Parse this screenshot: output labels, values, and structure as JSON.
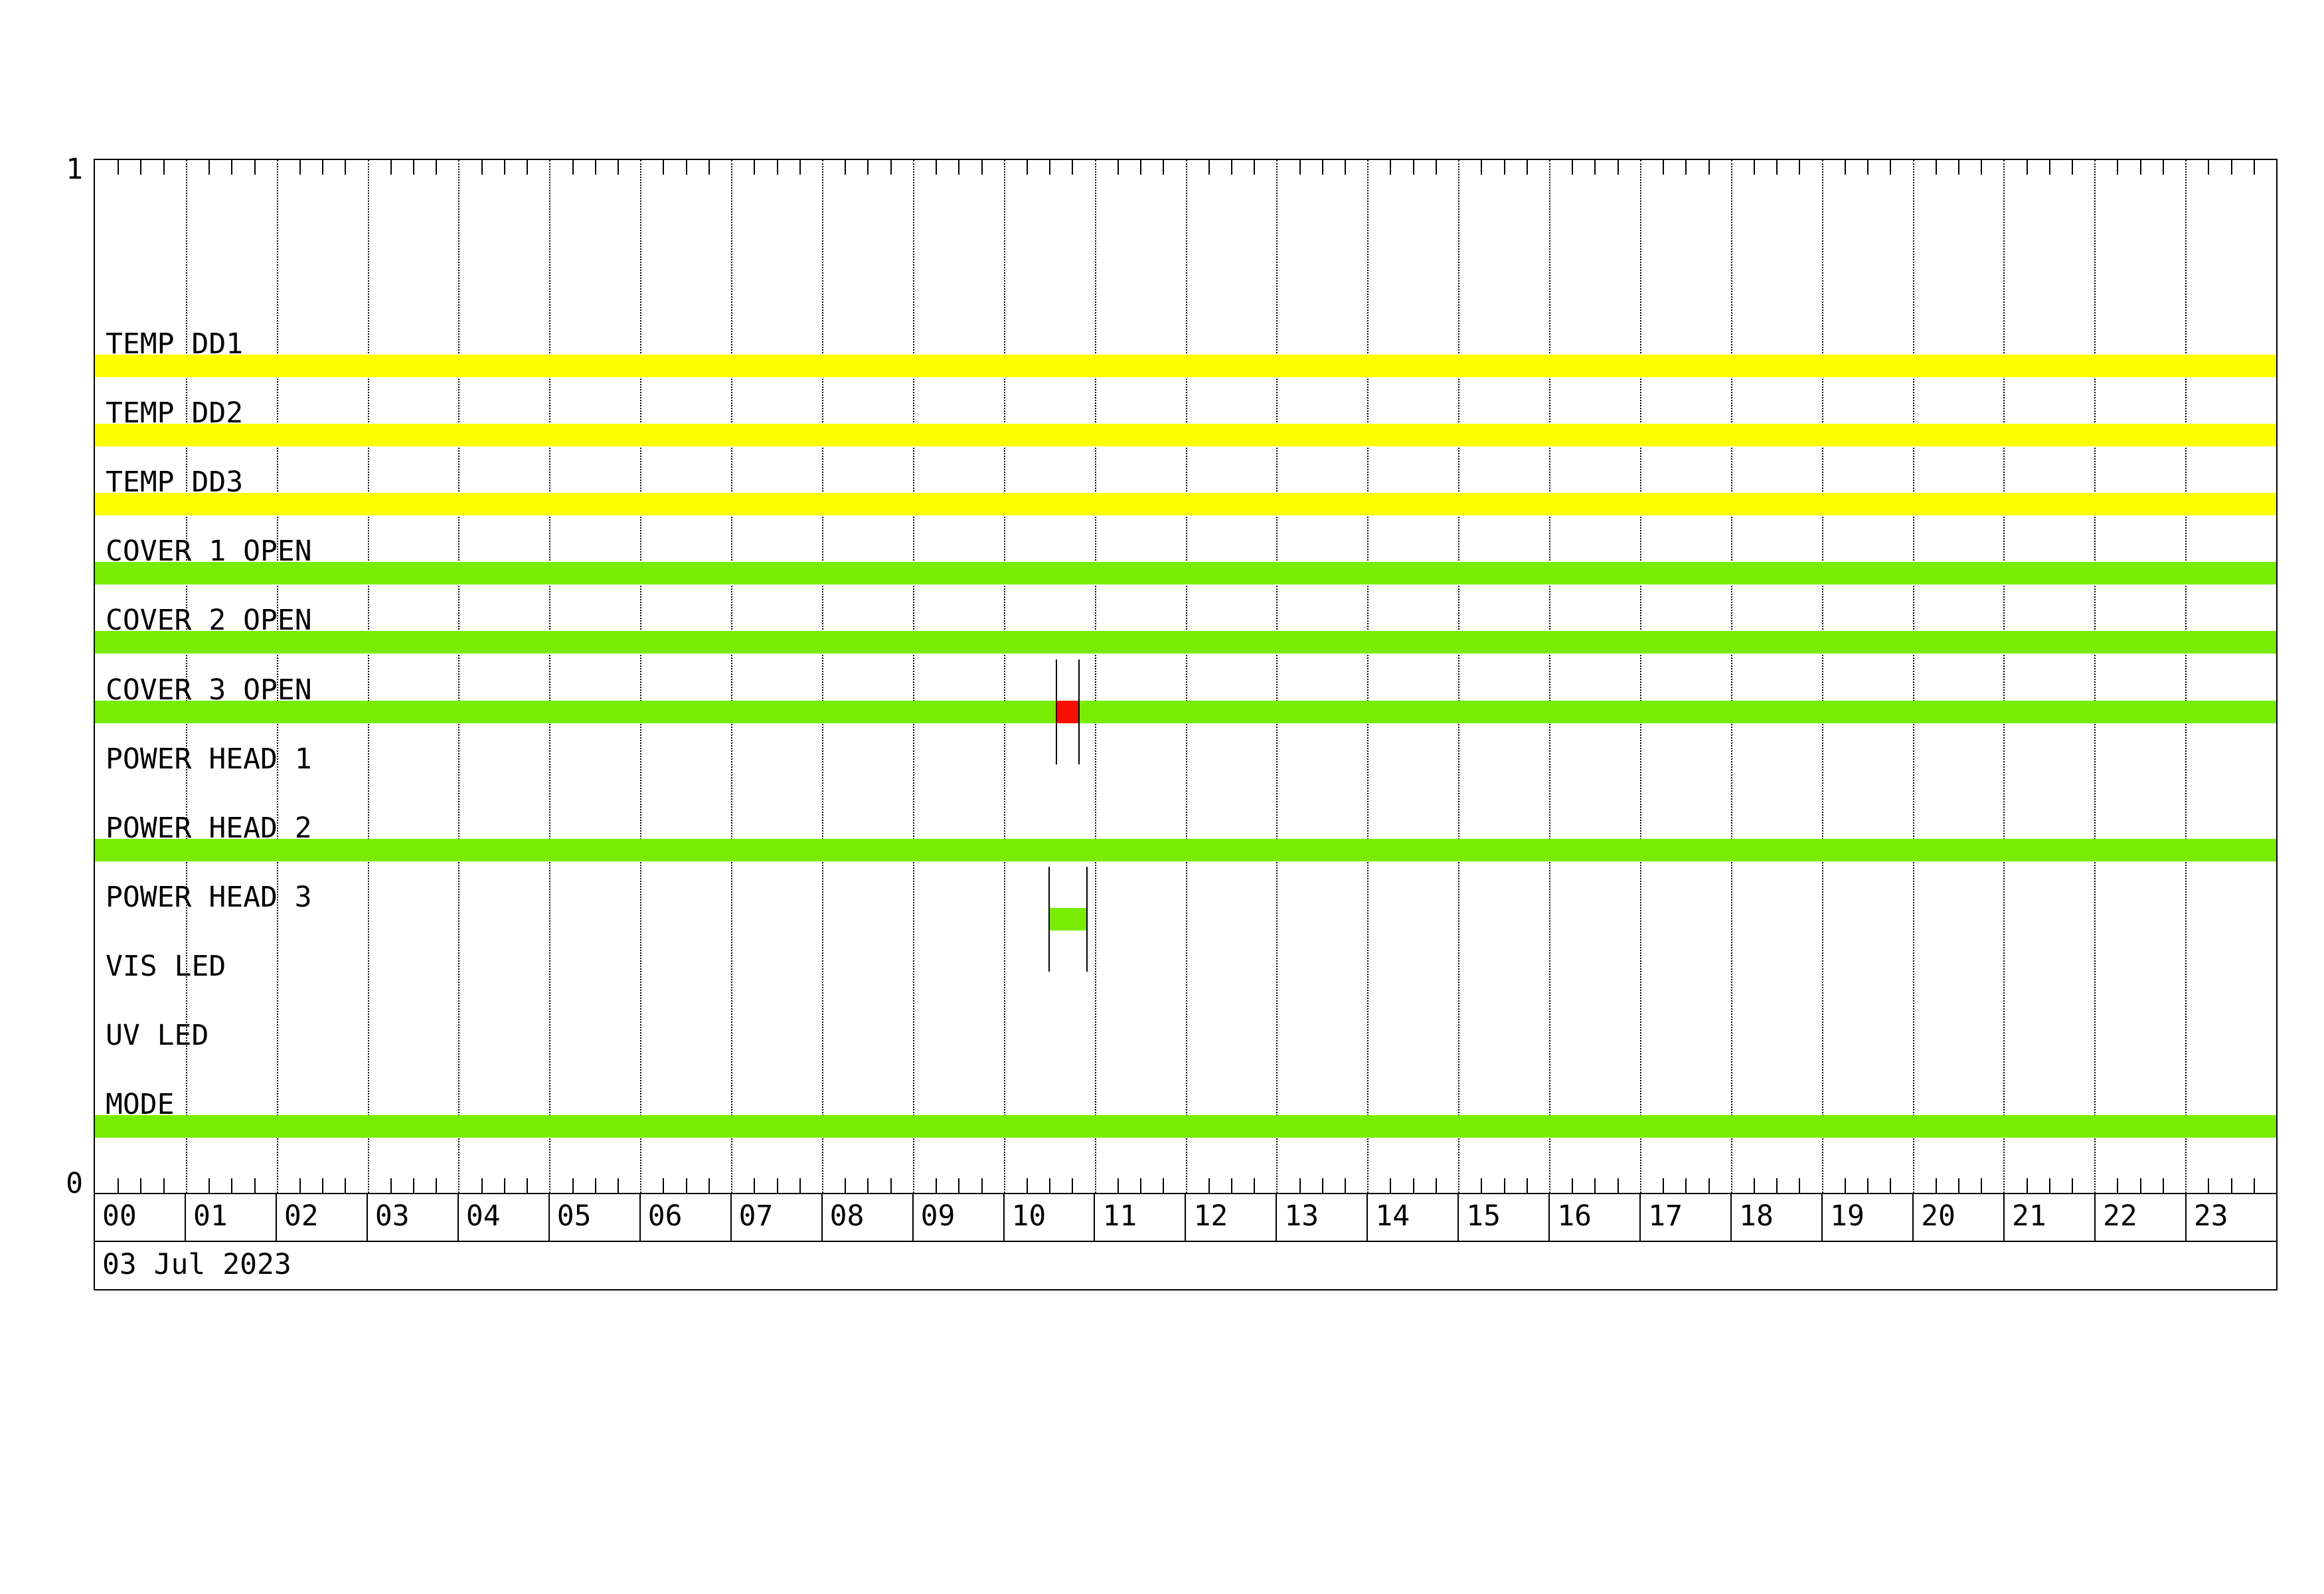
{
  "chart_data": {
    "type": "bar",
    "subtype": "state-timeline-gantt",
    "title": "",
    "date": "03 Jul 2023",
    "x_axis": {
      "unit": "hours",
      "range": [
        0,
        24
      ],
      "hour_labels": [
        "00",
        "01",
        "02",
        "03",
        "04",
        "05",
        "06",
        "07",
        "08",
        "09",
        "10",
        "11",
        "12",
        "13",
        "14",
        "15",
        "16",
        "17",
        "18",
        "19",
        "20",
        "21",
        "22",
        "23"
      ],
      "minor_tick_minutes": 15,
      "gridlines": "dotted vertical line at every hour"
    },
    "y_axis": {
      "top": "1",
      "bottom": "0",
      "meaning": "binary on/off state per row"
    },
    "legend": null,
    "colors": {
      "on_yellow": "#FFFF00",
      "on_green": "#79EC04",
      "event_red": "#F50F00",
      "line": "#000000"
    },
    "series": [
      {
        "name": "TEMP DD1",
        "color": "#FFFF00",
        "on_intervals": [
          {
            "start": 0,
            "end": 24
          }
        ],
        "events": []
      },
      {
        "name": "TEMP DD2",
        "color": "#FFFF00",
        "on_intervals": [
          {
            "start": 0,
            "end": 24
          }
        ],
        "events": []
      },
      {
        "name": "TEMP DD3",
        "color": "#FFFF00",
        "on_intervals": [
          {
            "start": 0,
            "end": 24
          }
        ],
        "events": []
      },
      {
        "name": "COVER 1 OPEN",
        "color": "#79EC04",
        "on_intervals": [
          {
            "start": 0,
            "end": 24
          }
        ],
        "events": []
      },
      {
        "name": "COVER 2 OPEN",
        "color": "#79EC04",
        "on_intervals": [
          {
            "start": 0,
            "end": 24
          }
        ],
        "events": []
      },
      {
        "name": "COVER 3 OPEN",
        "color": "#79EC04",
        "on_intervals": [
          {
            "start": 0,
            "end": 24
          }
        ],
        "events": [
          {
            "color": "#F50F00",
            "start": 10.57,
            "end": 10.82,
            "start_time": "10:34",
            "end_time": "10:49",
            "markers": true
          }
        ]
      },
      {
        "name": "POWER HEAD 1",
        "color": "#79EC04",
        "on_intervals": [],
        "events": []
      },
      {
        "name": "POWER HEAD 2",
        "color": "#79EC04",
        "on_intervals": [
          {
            "start": 0,
            "end": 24
          }
        ],
        "events": []
      },
      {
        "name": "POWER HEAD 3",
        "color": "#79EC04",
        "on_intervals": [],
        "events": [
          {
            "color": "#79EC04",
            "start": 10.49,
            "end": 10.91,
            "start_time": "10:29",
            "end_time": "10:55",
            "markers": true
          }
        ]
      },
      {
        "name": "VIS LED",
        "color": "#79EC04",
        "on_intervals": [],
        "events": []
      },
      {
        "name": "UV LED",
        "color": "#79EC04",
        "on_intervals": [],
        "events": []
      },
      {
        "name": "MODE",
        "color": "#79EC04",
        "on_intervals": [
          {
            "start": 0,
            "end": 24
          }
        ],
        "events": []
      }
    ]
  }
}
